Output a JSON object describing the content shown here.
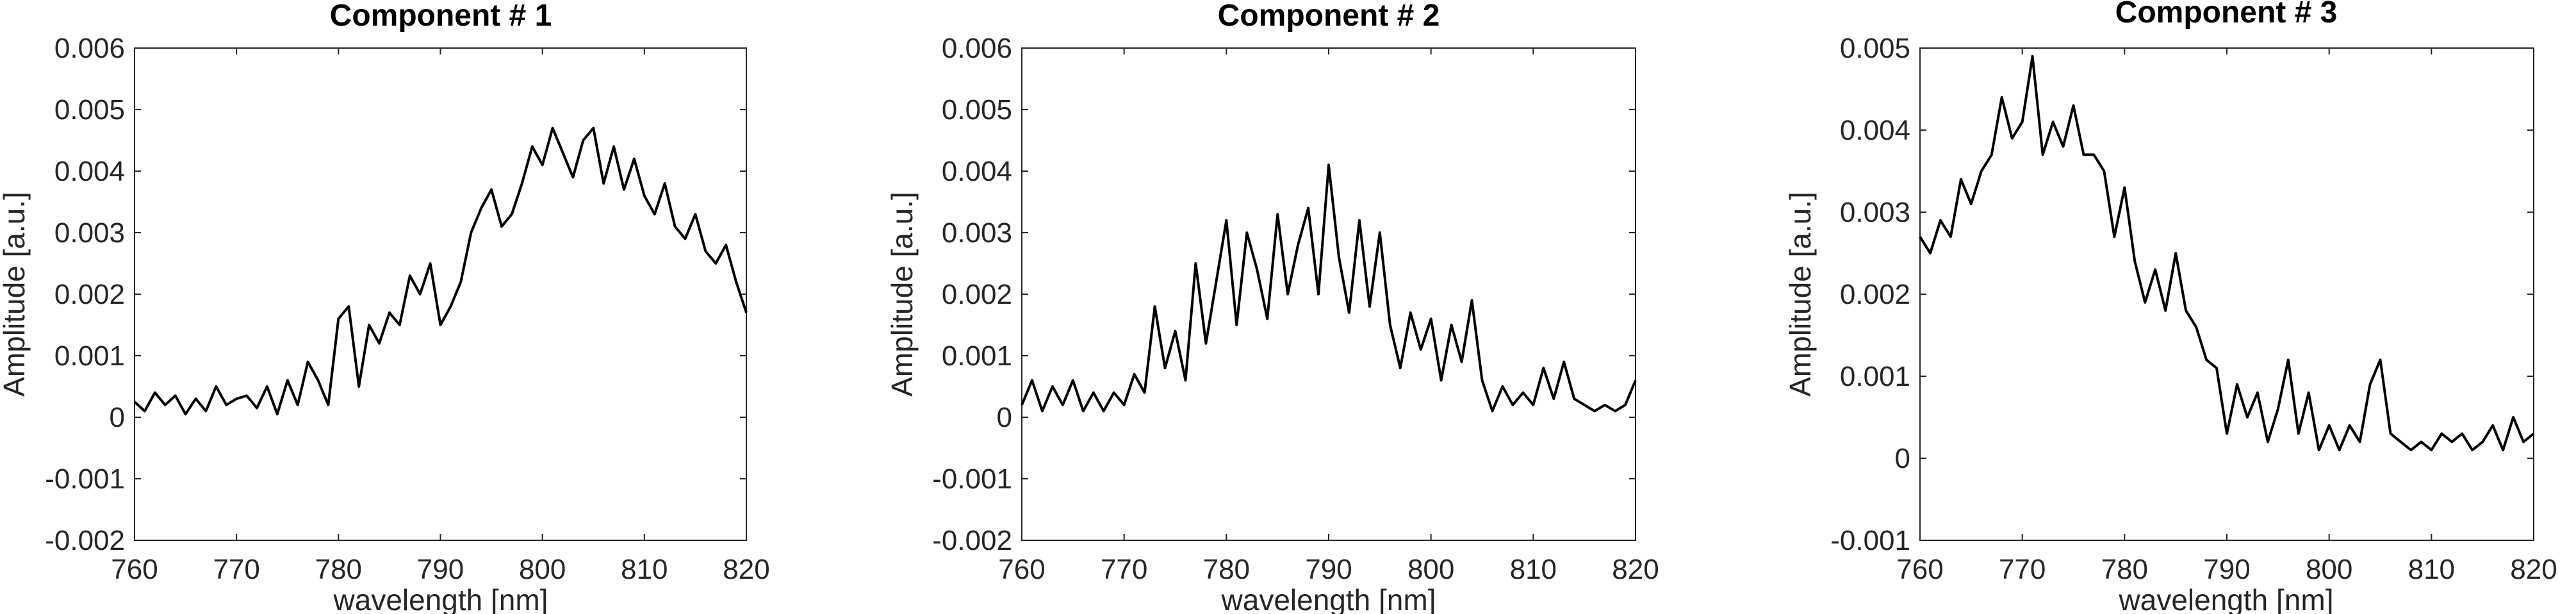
{
  "chart_data": [
    {
      "type": "line",
      "title": "Component # 1",
      "xlabel": "wavelength [nm]",
      "ylabel": "Amplitude [a.u.]",
      "xlim": [
        760,
        820
      ],
      "ylim": [
        -0.002,
        0.006
      ],
      "xticks": [
        "760",
        "770",
        "780",
        "790",
        "800",
        "810",
        "820"
      ],
      "yticks": [
        "-0.002",
        "-0.001",
        "0",
        "0.001",
        "0.002",
        "0.003",
        "0.004",
        "0.005",
        "0.006"
      ],
      "grid": false,
      "series": [
        {
          "x": [
            760,
            761,
            762,
            763,
            764,
            765,
            766,
            767,
            768,
            769,
            770,
            771,
            772,
            773,
            774,
            775,
            776,
            777,
            778,
            779,
            780,
            781,
            782,
            783,
            784,
            785,
            786,
            787,
            788,
            789,
            790,
            791,
            792,
            793,
            794,
            795,
            796,
            797,
            798,
            799,
            800,
            801,
            802,
            803,
            804,
            805,
            806,
            807,
            808,
            809,
            810,
            811,
            812,
            813,
            814,
            815,
            816,
            817,
            818,
            819,
            820
          ],
          "y": [
            0.00025,
            0.0001,
            0.0004,
            0.0002,
            0.00035,
            5e-05,
            0.0003,
            0.0001,
            0.0005,
            0.0002,
            0.0003,
            0.00035,
            0.00015,
            0.0005,
            5e-05,
            0.0006,
            0.0002,
            0.0009,
            0.0006,
            0.0002,
            0.0016,
            0.0018,
            0.0005,
            0.0015,
            0.0012,
            0.0017,
            0.0015,
            0.0023,
            0.002,
            0.0025,
            0.0015,
            0.0018,
            0.0022,
            0.003,
            0.0034,
            0.0037,
            0.0031,
            0.0033,
            0.0038,
            0.0044,
            0.0041,
            0.0047,
            0.0043,
            0.0039,
            0.0045,
            0.0047,
            0.0038,
            0.0044,
            0.0037,
            0.0042,
            0.0036,
            0.0033,
            0.0038,
            0.0031,
            0.0029,
            0.0033,
            0.0027,
            0.0025,
            0.0028,
            0.0022,
            0.0017
          ]
        }
      ]
    },
    {
      "type": "line",
      "title": "Component # 2",
      "xlabel": "wavelength [nm]",
      "ylabel": "Amplitude [a.u.]",
      "xlim": [
        760,
        820
      ],
      "ylim": [
        -0.002,
        0.006
      ],
      "xticks": [
        "760",
        "770",
        "780",
        "790",
        "800",
        "810",
        "820"
      ],
      "yticks": [
        "-0.002",
        "-0.001",
        "0",
        "0.001",
        "0.002",
        "0.003",
        "0.004",
        "0.005",
        "0.006"
      ],
      "grid": false,
      "series": [
        {
          "x": [
            760,
            761,
            762,
            763,
            764,
            765,
            766,
            767,
            768,
            769,
            770,
            771,
            772,
            773,
            774,
            775,
            776,
            777,
            778,
            779,
            780,
            781,
            782,
            783,
            784,
            785,
            786,
            787,
            788,
            789,
            790,
            791,
            792,
            793,
            794,
            795,
            796,
            797,
            798,
            799,
            800,
            801,
            802,
            803,
            804,
            805,
            806,
            807,
            808,
            809,
            810,
            811,
            812,
            813,
            814,
            815,
            816,
            817,
            818,
            819,
            820
          ],
          "y": [
            0.0002,
            0.0006,
            0.0001,
            0.0005,
            0.0002,
            0.0006,
            0.0001,
            0.0004,
            0.0001,
            0.0004,
            0.0002,
            0.0007,
            0.0004,
            0.0018,
            0.0008,
            0.0014,
            0.0006,
            0.0025,
            0.0012,
            0.0022,
            0.0032,
            0.0015,
            0.003,
            0.0024,
            0.0016,
            0.0033,
            0.002,
            0.0028,
            0.0034,
            0.002,
            0.0041,
            0.0026,
            0.0017,
            0.0032,
            0.0018,
            0.003,
            0.0015,
            0.0008,
            0.0017,
            0.0011,
            0.0016,
            0.0006,
            0.0015,
            0.0009,
            0.0019,
            0.0006,
            0.0001,
            0.0005,
            0.0002,
            0.0004,
            0.0002,
            0.0008,
            0.0003,
            0.0009,
            0.0003,
            0.0002,
            0.0001,
            0.0002,
            0.0001,
            0.0002,
            0.0006
          ]
        }
      ]
    },
    {
      "type": "line",
      "title": "Component # 3",
      "xlabel": "wavelength [nm]",
      "ylabel": "Amplitude [a.u.]",
      "xlim": [
        760,
        820
      ],
      "ylim": [
        -0.001,
        0.005
      ],
      "xticks": [
        "760",
        "770",
        "780",
        "790",
        "800",
        "810",
        "820"
      ],
      "yticks": [
        "-0.001",
        "0",
        "0.001",
        "0.002",
        "0.003",
        "0.004",
        "0.005"
      ],
      "grid": false,
      "series": [
        {
          "x": [
            760,
            761,
            762,
            763,
            764,
            765,
            766,
            767,
            768,
            769,
            770,
            771,
            772,
            773,
            774,
            775,
            776,
            777,
            778,
            779,
            780,
            781,
            782,
            783,
            784,
            785,
            786,
            787,
            788,
            789,
            790,
            791,
            792,
            793,
            794,
            795,
            796,
            797,
            798,
            799,
            800,
            801,
            802,
            803,
            804,
            805,
            806,
            807,
            808,
            809,
            810,
            811,
            812,
            813,
            814,
            815,
            816,
            817,
            818,
            819,
            820
          ],
          "y": [
            0.0027,
            0.0025,
            0.0029,
            0.0027,
            0.0034,
            0.0031,
            0.0035,
            0.0037,
            0.0044,
            0.0039,
            0.0041,
            0.0049,
            0.0037,
            0.0041,
            0.0038,
            0.0043,
            0.0037,
            0.0037,
            0.0035,
            0.0027,
            0.0033,
            0.0024,
            0.0019,
            0.0023,
            0.0018,
            0.0025,
            0.0018,
            0.0016,
            0.0012,
            0.0011,
            0.0003,
            0.0009,
            0.0005,
            0.0008,
            0.0002,
            0.0006,
            0.0012,
            0.0003,
            0.0008,
            0.0001,
            0.0004,
            0.0001,
            0.0004,
            0.0002,
            0.0009,
            0.0012,
            0.0003,
            0.0002,
            0.0001,
            0.0002,
            0.0001,
            0.0003,
            0.0002,
            0.0003,
            0.0001,
            0.0002,
            0.0004,
            0.0001,
            0.0005,
            0.0002,
            0.0003
          ]
        }
      ]
    }
  ]
}
